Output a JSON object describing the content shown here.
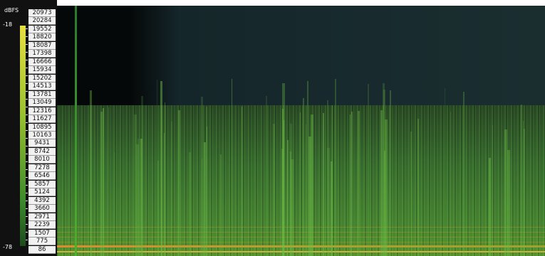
{
  "colorbar": {
    "unit": "dBFS",
    "max": "-18",
    "min": "-78"
  },
  "frequency_labels": [
    "20973",
    "20284",
    "19552",
    "18820",
    "18087",
    "17398",
    "16666",
    "15934",
    "15202",
    "14513",
    "13781",
    "13049",
    "12316",
    "11627",
    "10895",
    "10163",
    "9431",
    "8742",
    "8010",
    "7278",
    "6546",
    "5857",
    "5124",
    "4392",
    "3660",
    "2971",
    "2239",
    "1507",
    "775",
    "86"
  ]
}
